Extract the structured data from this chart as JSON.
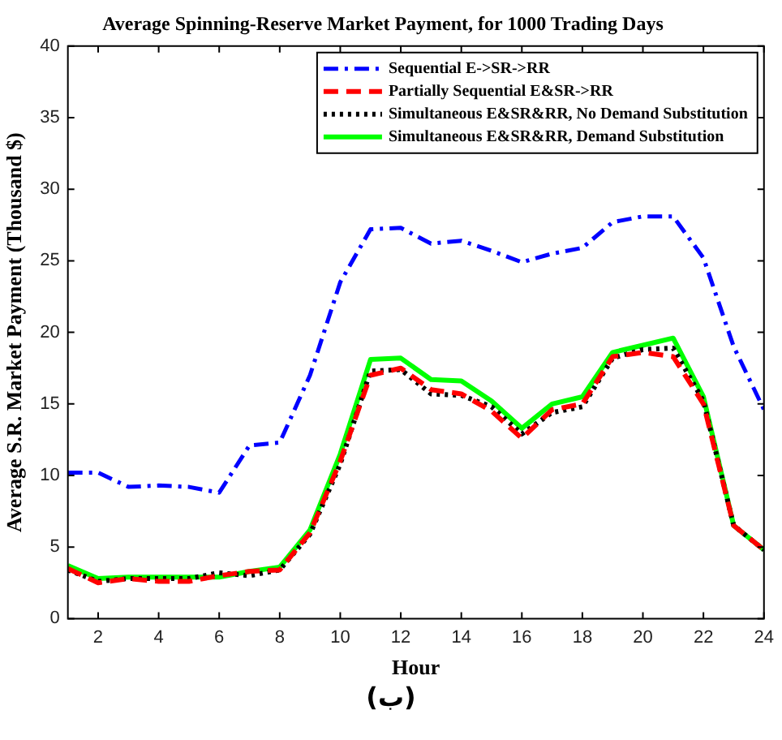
{
  "chart_data": {
    "type": "line",
    "title": "Average Spinning-Reserve Market Payment, for 1000 Trading Days",
    "xlabel": "Hour",
    "ylabel": "Average S.R. Market Payment (Thousand $)",
    "x": [
      1,
      2,
      3,
      4,
      5,
      6,
      7,
      8,
      9,
      10,
      11,
      12,
      13,
      14,
      15,
      16,
      17,
      18,
      19,
      20,
      21,
      22,
      23,
      24
    ],
    "series": [
      {
        "name": "Sequential E->SR->RR",
        "color": "#0000ff",
        "line_style": "dashdot",
        "values": [
          10.2,
          10.2,
          9.2,
          9.3,
          9.2,
          8.8,
          12.1,
          12.3,
          17,
          23.5,
          27.2,
          27.3,
          26.2,
          26.4,
          25.7,
          24.9,
          25.5,
          25.9,
          27.7,
          28.1,
          28.1,
          25.2,
          19,
          14.6
        ]
      },
      {
        "name": "Partially Sequential E&SR->RR",
        "color": "#ff0000",
        "line_style": "dashed",
        "values": [
          3.5,
          2.5,
          2.8,
          2.6,
          2.6,
          3.0,
          3.3,
          3.4,
          6,
          11,
          17,
          17.5,
          16,
          15.7,
          14.5,
          12.6,
          14.6,
          15,
          18.3,
          18.6,
          18.3,
          15,
          6.5,
          4.8
        ]
      },
      {
        "name": "Simultaneous E&SR&RR, No Demand Substitution",
        "color": "#000000",
        "line_style": "dotted",
        "values": [
          3.4,
          2.6,
          2.8,
          2.8,
          2.8,
          3.2,
          3.0,
          3.4,
          5.9,
          10.8,
          17.3,
          17.4,
          15.7,
          15.6,
          14.8,
          12.9,
          14.4,
          14.8,
          18.2,
          18.8,
          18.9,
          15.2,
          6.5,
          4.8
        ]
      },
      {
        "name": "Simultaneous E&SR&RR, Demand Substitution",
        "color": "#00ff00",
        "line_style": "solid",
        "values": [
          3.7,
          2.8,
          2.9,
          2.9,
          2.9,
          2.9,
          3.3,
          3.6,
          6.2,
          11.5,
          18.1,
          18.2,
          16.7,
          16.6,
          15.2,
          13.3,
          15,
          15.5,
          18.6,
          19.1,
          19.6,
          15.5,
          6.5,
          4.8
        ]
      }
    ],
    "xlim": [
      1,
      24
    ],
    "xticks": [
      2,
      4,
      6,
      8,
      10,
      12,
      14,
      16,
      18,
      20,
      22,
      24
    ],
    "ylim": [
      0,
      40
    ],
    "yticks": [
      0,
      5,
      10,
      15,
      20,
      25,
      30,
      35,
      40
    ],
    "grid": false,
    "legend": "top right",
    "marker": "none",
    "annotations": [
      "(ب)"
    ]
  }
}
